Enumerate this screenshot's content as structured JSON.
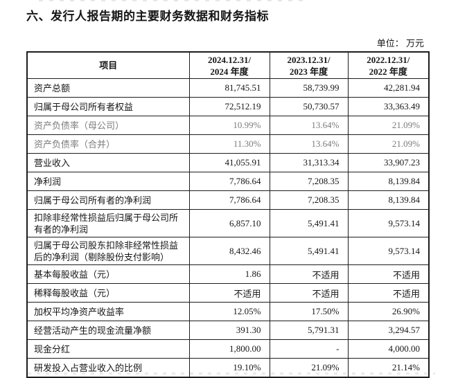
{
  "page": {
    "title": "六、发行人报告期的主要财务数据和财务指标",
    "unit_label": "单位： 万元"
  },
  "colors": {
    "text": "#161616",
    "muted_text": "#7b7b7b",
    "border": "#1c1c1c",
    "background": "#ffffff"
  },
  "table": {
    "header": {
      "item": "项目",
      "cols": [
        {
          "line1": "2024.12.31/",
          "line2": "2024 年度"
        },
        {
          "line1": "2023.12.31/",
          "line2": "2023 年度"
        },
        {
          "line1": "2022.12.31/",
          "line2": "2022 年度"
        }
      ]
    },
    "rows": [
      {
        "label": "资产总额",
        "y2024": "81,745.51",
        "y2023": "58,739.99",
        "y2022": "42,281.94"
      },
      {
        "label": "归属于母公司所有者权益",
        "y2024": "72,512.19",
        "y2023": "50,730.57",
        "y2022": "33,363.49"
      },
      {
        "label": "资产负债率（母公司）",
        "y2024": "10.99%",
        "y2023": "13.64%",
        "y2022": "21.09%",
        "muted": true
      },
      {
        "label": "资产负债率（合并）",
        "y2024": "11.30%",
        "y2023": "13.64%",
        "y2022": "21.09%",
        "muted": true
      },
      {
        "label": "营业收入",
        "y2024": "41,055.91",
        "y2023": "31,313.34",
        "y2022": "33,907.23"
      },
      {
        "label": "净利润",
        "y2024": "7,786.64",
        "y2023": "7,208.35",
        "y2022": "8,139.84"
      },
      {
        "label": "归属于母公司所有者的净利润",
        "y2024": "7,786.64",
        "y2023": "7,208.35",
        "y2022": "8,139.84"
      },
      {
        "label": "扣除非经常性损益后归属于母公司所有者的净利润",
        "y2024": "6,857.10",
        "y2023": "5,491.41",
        "y2022": "9,573.14"
      },
      {
        "label": "归属于母公司股东扣除非经常性损益后的净利润（剔除股份支付影响）",
        "y2024": "8,432.46",
        "y2023": "5,491.41",
        "y2022": "9,573.14"
      },
      {
        "label": "基本每股收益（元）",
        "y2024": "1.86",
        "y2023": "不适用",
        "y2022": "不适用"
      },
      {
        "label": "稀释每股收益（元）",
        "y2024": "不适用",
        "y2023": "不适用",
        "y2022": "不适用"
      },
      {
        "label": "加权平均净资产收益率",
        "y2024": "12.05%",
        "y2023": "17.50%",
        "y2022": "26.90%"
      },
      {
        "label": "经营活动产生的现金流量净额",
        "y2024": "391.30",
        "y2023": "5,791.31",
        "y2022": "3,294.57"
      },
      {
        "label": "现金分红",
        "y2024": "1,800.00",
        "y2023": "-",
        "y2022": "4,000.00"
      },
      {
        "label": "研发投入占营业收入的比例",
        "y2024": "19.10%",
        "y2023": "21.09%",
        "y2022": "21.14%"
      }
    ]
  }
}
